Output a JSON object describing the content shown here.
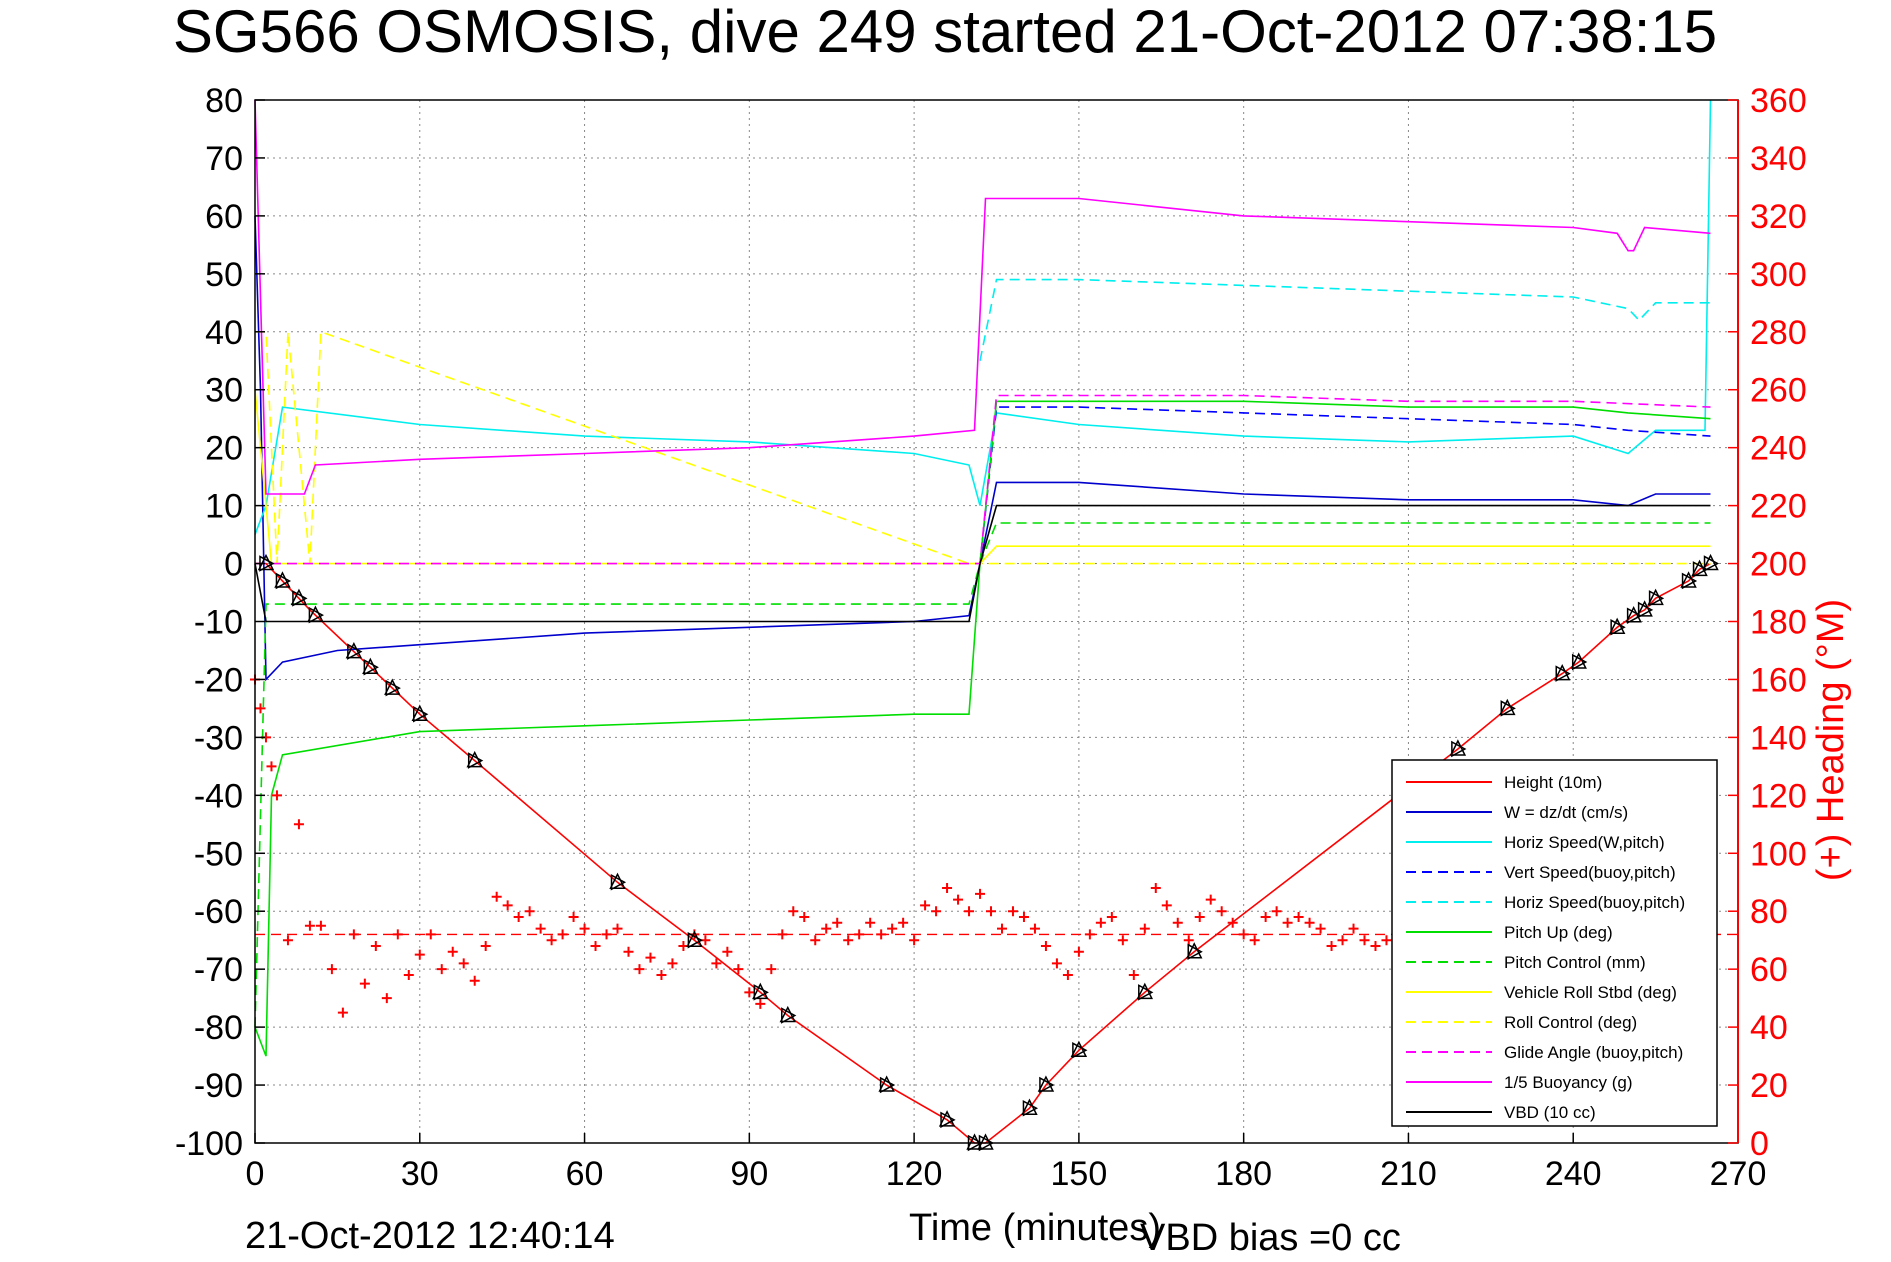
{
  "chart_data": {
    "type": "line",
    "title": "SG566 OSMOSIS, dive 249 started 21-Oct-2012 07:38:15",
    "xlabel": "Time (minutes)",
    "ylabel_right": "(+) Heading (°M)",
    "footer_left": "21-Oct-2012 12:40:14",
    "footer_right": "VBD bias =0 cc",
    "xlim": [
      0,
      270
    ],
    "ylim": [
      -100,
      80
    ],
    "ylim_right": [
      0,
      360
    ],
    "x_ticks": [
      0,
      30,
      60,
      90,
      120,
      150,
      180,
      210,
      240,
      270
    ],
    "y_ticks": [
      80,
      70,
      60,
      50,
      40,
      30,
      20,
      10,
      0,
      -10,
      -20,
      -30,
      -40,
      -50,
      -60,
      -70,
      -80,
      -90,
      -100
    ],
    "y_ticks_right": [
      360,
      340,
      320,
      300,
      280,
      260,
      240,
      220,
      200,
      180,
      160,
      140,
      120,
      100,
      80,
      60,
      40,
      20,
      0
    ],
    "grid": true,
    "legend_position": "bottom-right",
    "series": [
      {
        "name": "Height (10m)",
        "color": "#ff0000",
        "dash": "solid",
        "x": [
          0,
          2,
          10,
          20,
          30,
          40,
          66,
          80,
          92,
          97,
          115,
          126,
          131,
          133,
          141,
          144,
          150,
          162,
          171,
          219,
          228,
          238,
          241,
          248,
          251,
          253,
          255,
          261,
          263,
          265
        ],
        "y": [
          0,
          0,
          -8,
          -17,
          -26,
          -34,
          -55,
          -65,
          -74,
          -78,
          -90,
          -96,
          -100,
          -100,
          -94,
          -90,
          -84,
          -74,
          -67,
          -32,
          -25,
          -19,
          -17,
          -11,
          -9,
          -8,
          -6,
          -3,
          -1,
          0
        ]
      },
      {
        "name": "W = dz/dt (cm/s)",
        "color": "#0000cc",
        "dash": "solid",
        "x": [
          0,
          1,
          2,
          5,
          15,
          30,
          60,
          90,
          120,
          130,
          132,
          135,
          150,
          180,
          210,
          240,
          250,
          255,
          265
        ],
        "y": [
          60,
          30,
          -20,
          -17,
          -15,
          -14,
          -12,
          -11,
          -10,
          -9,
          0,
          14,
          14,
          12,
          11,
          11,
          10,
          12,
          12
        ]
      },
      {
        "name": "Horiz Speed(W,pitch)",
        "color": "#00eeee",
        "dash": "solid",
        "x": [
          0,
          2,
          5,
          30,
          60,
          90,
          120,
          130,
          132,
          135,
          150,
          180,
          210,
          240,
          250,
          255,
          264,
          265
        ],
        "y": [
          5,
          10,
          27,
          24,
          22,
          21,
          19,
          17,
          10,
          26,
          24,
          22,
          21,
          22,
          19,
          23,
          23,
          80
        ]
      },
      {
        "name": "Vert Speed(buoy,pitch)",
        "color": "#0000ff",
        "dash": "dashed",
        "x": [
          132,
          135,
          150,
          180,
          210,
          240,
          250,
          265
        ],
        "y": [
          0,
          27,
          27,
          26,
          25,
          24,
          23,
          22
        ]
      },
      {
        "name": "Horiz Speed(buoy,pitch)",
        "color": "#00eeee",
        "dash": "dashed",
        "x": [
          132,
          135,
          150,
          180,
          210,
          240,
          250,
          252,
          255,
          265
        ],
        "y": [
          35,
          49,
          49,
          48,
          47,
          46,
          44,
          42,
          45,
          45
        ]
      },
      {
        "name": "Pitch Up (deg)",
        "color": "#00dd00",
        "dash": "solid",
        "x": [
          0,
          2,
          3,
          5,
          30,
          60,
          90,
          120,
          130,
          132,
          135,
          150,
          180,
          210,
          240,
          250,
          265
        ],
        "y": [
          -80,
          -85,
          -40,
          -33,
          -29,
          -28,
          -27,
          -26,
          -26,
          0,
          28,
          28,
          28,
          27,
          27,
          26,
          25
        ]
      },
      {
        "name": "Pitch Control (mm)",
        "color": "#00dd00",
        "dash": "dashed",
        "x": [
          0,
          2,
          130,
          132,
          135,
          265
        ],
        "y": [
          -80,
          -7,
          -7,
          0,
          7,
          7
        ]
      },
      {
        "name": "Vehicle Roll Stbd (deg)",
        "color": "#ffff00",
        "dash": "solid",
        "x": [
          0,
          3,
          30,
          60,
          90,
          120,
          130,
          132,
          135,
          150,
          180,
          210,
          240,
          265
        ],
        "y": [
          30,
          0,
          0,
          0,
          0,
          0,
          0,
          0,
          3,
          3,
          3,
          3,
          3,
          3
        ]
      },
      {
        "name": "Roll Control (deg)",
        "color": "#ffff00",
        "dash": "dashed",
        "x": [
          0,
          2,
          4,
          6,
          10,
          12,
          130,
          132,
          265
        ],
        "y": [
          40,
          40,
          0,
          40,
          0,
          40,
          0,
          0,
          0
        ]
      },
      {
        "name": "Glide Angle (buoy,pitch)",
        "color": "#ff00ff",
        "dash": "dashed",
        "x": [
          0,
          3,
          130,
          132,
          135,
          150,
          180,
          210,
          240,
          265
        ],
        "y": [
          0,
          0,
          0,
          0,
          29,
          29,
          29,
          28,
          28,
          27
        ]
      },
      {
        "name": "1/5 Buoyancy (g)",
        "color": "#ff00ff",
        "dash": "solid",
        "x": [
          0,
          2,
          9,
          11,
          30,
          60,
          90,
          120,
          131,
          133,
          150,
          180,
          210,
          240,
          248,
          250,
          251,
          253,
          265
        ],
        "y": [
          80,
          12,
          12,
          17,
          18,
          19,
          20,
          22,
          23,
          63,
          63,
          60,
          59,
          58,
          57,
          54,
          54,
          58,
          57
        ]
      },
      {
        "name": "VBD (10 cc)",
        "color": "#000000",
        "dash": "solid",
        "x": [
          0,
          2,
          130,
          132,
          135,
          265
        ],
        "y": [
          0,
          -10,
          -10,
          0,
          10,
          10
        ]
      }
    ],
    "heading_series": {
      "name": "Heading (°M)",
      "axis": "right",
      "color": "#ff0000",
      "marker": "+",
      "target_color": "#ff0000",
      "target_value": 72,
      "x": [
        0,
        1,
        2,
        3,
        4,
        6,
        8,
        10,
        12,
        14,
        16,
        18,
        20,
        22,
        24,
        26,
        28,
        30,
        32,
        34,
        36,
        38,
        40,
        42,
        44,
        46,
        48,
        50,
        52,
        54,
        56,
        58,
        60,
        62,
        64,
        66,
        68,
        70,
        72,
        74,
        76,
        78,
        80,
        82,
        84,
        86,
        88,
        90,
        92,
        94,
        96,
        98,
        100,
        102,
        104,
        106,
        108,
        110,
        112,
        114,
        116,
        118,
        120,
        122,
        124,
        126,
        128,
        130,
        132,
        134,
        136,
        138,
        140,
        142,
        144,
        146,
        148,
        150,
        152,
        154,
        156,
        158,
        160,
        162,
        164,
        166,
        168,
        170,
        172,
        174,
        176,
        178,
        180,
        182,
        184,
        186,
        188,
        190,
        192,
        194,
        196,
        198,
        200,
        202,
        204,
        206,
        208
      ],
      "y": [
        160,
        150,
        140,
        130,
        120,
        70,
        110,
        75,
        75,
        60,
        45,
        72,
        55,
        68,
        50,
        72,
        58,
        65,
        72,
        60,
        66,
        62,
        56,
        68,
        85,
        82,
        78,
        80,
        74,
        70,
        72,
        78,
        74,
        68,
        72,
        74,
        66,
        60,
        64,
        58,
        62,
        68,
        72,
        70,
        62,
        66,
        60,
        52,
        48,
        60,
        72,
        80,
        78,
        70,
        74,
        76,
        70,
        72,
        76,
        72,
        74,
        76,
        70,
        82,
        80,
        88,
        84,
        80,
        86,
        80,
        74,
        80,
        78,
        74,
        68,
        62,
        58,
        66,
        72,
        76,
        78,
        70,
        58,
        74,
        88,
        82,
        76,
        70,
        78,
        84,
        80,
        76,
        72,
        70,
        78,
        80,
        76,
        78,
        76,
        74,
        68,
        70,
        74,
        70,
        68,
        70,
        66
      ]
    },
    "depth_markers_x": [
      2,
      5,
      8,
      11,
      18,
      21,
      25,
      30,
      40,
      66,
      80,
      92,
      97,
      115,
      126,
      131,
      133,
      141,
      144,
      150,
      162,
      171,
      219,
      228,
      238,
      241,
      248,
      251,
      253,
      255,
      261,
      263,
      265
    ]
  }
}
